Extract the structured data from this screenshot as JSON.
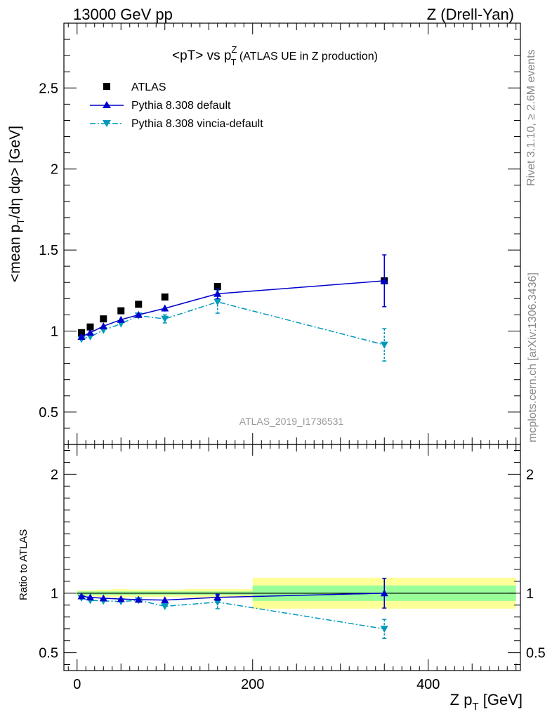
{
  "header": {
    "energy": "13000 GeV pp",
    "process": "Z (Drell-Yan)"
  },
  "main_title": {
    "prefix": "<pT> vs p",
    "sup": "Z",
    "sub": "T",
    "suffix": " (ATLAS UE in Z production)"
  },
  "side_labels": {
    "rivet": "Rivet 3.1.10, ≥ 2.6M events",
    "mcplots": "mcplots.cern.ch [arXiv:1306.3436]"
  },
  "watermark": "ATLAS_2019_I1736531",
  "colors": {
    "atlas": "#000000",
    "pythia_default": "#0000cc",
    "vincia": "#0099bb",
    "band_inner": "#99ff99",
    "band_outer": "#ffff99"
  },
  "chart_data": [
    {
      "type": "scatter",
      "panel": "main",
      "ylabel": {
        "prefix": "<mean p",
        "sub1": "T",
        "middle": "/dη dφ> [GeV]"
      },
      "xlim": [
        -15,
        505
      ],
      "ylim": [
        0.3,
        2.9
      ],
      "yticks": [
        0.5,
        1,
        1.5,
        2,
        2.5
      ],
      "yticklabels": [
        "0.5",
        "1",
        "1.5",
        "2",
        "2.5"
      ],
      "legend_position": "top-left",
      "series": [
        {
          "name": "ATLAS",
          "style": "square",
          "x": [
            5,
            15,
            30,
            50,
            70,
            100,
            160,
            350
          ],
          "y": [
            0.99,
            1.025,
            1.075,
            1.125,
            1.165,
            1.21,
            1.275,
            1.31
          ],
          "yerr": [
            0.005,
            0.005,
            0.005,
            0.005,
            0.005,
            0.005,
            0.01,
            0.01
          ]
        },
        {
          "name": "Pythia 8.308 default",
          "style": "triangle-up-solid",
          "x": [
            5,
            15,
            30,
            50,
            70,
            100,
            160,
            350
          ],
          "y": [
            0.965,
            0.99,
            1.03,
            1.07,
            1.1,
            1.14,
            1.23,
            1.31
          ],
          "yerr": [
            0.01,
            0.01,
            0.01,
            0.01,
            0.01,
            0.02,
            0.03,
            0.16
          ]
        },
        {
          "name": "Pythia 8.308 vincia-default",
          "style": "triangle-down-dashdot",
          "x": [
            5,
            15,
            30,
            50,
            70,
            100,
            160,
            350
          ],
          "y": [
            0.95,
            0.965,
            1.005,
            1.045,
            1.095,
            1.075,
            1.18,
            0.915
          ],
          "yerr": [
            0.01,
            0.01,
            0.01,
            0.01,
            0.015,
            0.025,
            0.07,
            0.1
          ]
        }
      ]
    },
    {
      "type": "scatter",
      "panel": "ratio",
      "xlabel": {
        "prefix": "Z p",
        "sub": "T",
        "suffix": " [GeV]"
      },
      "ylabel": "Ratio to ATLAS",
      "xlim": [
        -15,
        505
      ],
      "ylim": [
        0.35,
        2.25
      ],
      "xticks": [
        0,
        200,
        400
      ],
      "xticklabels": [
        "0",
        "200",
        "400"
      ],
      "yticks": [
        0.5,
        1,
        2
      ],
      "yticklabels": [
        "0.5",
        "1",
        "2"
      ],
      "bands": [
        {
          "x0": 0,
          "x1": 10,
          "inner": [
            0.985,
            1.015
          ],
          "outer": [
            0.975,
            1.025
          ]
        },
        {
          "x0": 10,
          "x1": 20,
          "inner": [
            0.985,
            1.015
          ],
          "outer": [
            0.975,
            1.025
          ]
        },
        {
          "x0": 20,
          "x1": 40,
          "inner": [
            0.985,
            1.015
          ],
          "outer": [
            0.97,
            1.03
          ]
        },
        {
          "x0": 40,
          "x1": 60,
          "inner": [
            0.985,
            1.015
          ],
          "outer": [
            0.965,
            1.035
          ]
        },
        {
          "x0": 60,
          "x1": 80,
          "inner": [
            0.985,
            1.015
          ],
          "outer": [
            0.97,
            1.03
          ]
        },
        {
          "x0": 80,
          "x1": 120,
          "inner": [
            0.985,
            1.015
          ],
          "outer": [
            0.97,
            1.03
          ]
        },
        {
          "x0": 120,
          "x1": 200,
          "inner": [
            0.985,
            1.015
          ],
          "outer": [
            0.965,
            1.035
          ]
        },
        {
          "x0": 200,
          "x1": 500,
          "inner": [
            0.935,
            1.065
          ],
          "outer": [
            0.87,
            1.13
          ]
        }
      ],
      "series": [
        {
          "name": "Pythia 8.308 default",
          "style": "triangle-up-solid",
          "x": [
            5,
            15,
            30,
            50,
            70,
            100,
            160,
            350
          ],
          "y": [
            0.975,
            0.965,
            0.958,
            0.951,
            0.946,
            0.942,
            0.965,
            1.0
          ],
          "yerr": [
            0.01,
            0.01,
            0.01,
            0.01,
            0.01,
            0.015,
            0.025,
            0.125
          ]
        },
        {
          "name": "Pythia 8.308 vincia-default",
          "style": "triangle-down-dashdot",
          "x": [
            5,
            15,
            30,
            50,
            70,
            100,
            160,
            350
          ],
          "y": [
            0.96,
            0.94,
            0.935,
            0.93,
            0.94,
            0.89,
            0.925,
            0.7
          ],
          "yerr": [
            0.01,
            0.01,
            0.01,
            0.01,
            0.012,
            0.02,
            0.055,
            0.08
          ]
        }
      ]
    }
  ]
}
